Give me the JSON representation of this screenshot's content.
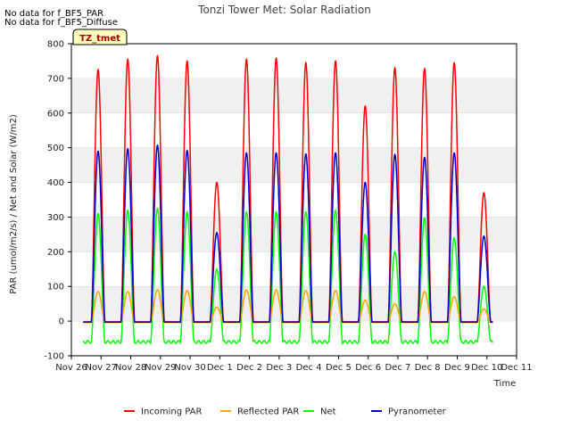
{
  "notes": [
    "No data for f_BF5_PAR",
    "No data for f_BF5_Diffuse"
  ],
  "badge": "TZ_tmet",
  "chart_data": {
    "type": "line",
    "title": "Tonzi Tower Met: Solar Radiation",
    "xlabel": "Time",
    "ylabel": "PAR (umol/m2/s) / Net and Solar (W/m2)",
    "xlim": [
      0,
      15
    ],
    "ylim": [
      -100,
      800
    ],
    "x_ticks": [
      {
        "value": 0,
        "label": "Nov 26"
      },
      {
        "value": 1,
        "label": "Nov 27"
      },
      {
        "value": 2,
        "label": "Nov 28"
      },
      {
        "value": 3,
        "label": "Nov 29"
      },
      {
        "value": 4,
        "label": "Nov 30"
      },
      {
        "value": 5,
        "label": "Dec 1"
      },
      {
        "value": 6,
        "label": "Dec 2"
      },
      {
        "value": 7,
        "label": "Dec 3"
      },
      {
        "value": 8,
        "label": "Dec 4"
      },
      {
        "value": 9,
        "label": "Dec 5"
      },
      {
        "value": 10,
        "label": "Dec 6"
      },
      {
        "value": 11,
        "label": "Dec 7"
      },
      {
        "value": 12,
        "label": "Dec 8"
      },
      {
        "value": 13,
        "label": "Dec 9"
      },
      {
        "value": 14,
        "label": "Dec 10"
      },
      {
        "value": 15,
        "label": "Dec 11"
      }
    ],
    "y_ticks": [
      -100,
      0,
      100,
      200,
      300,
      400,
      500,
      600,
      700,
      800
    ],
    "grid": true,
    "legend_position": "bottom",
    "days": [
      {
        "day": 0.9,
        "par": 725,
        "refl": 85,
        "net": 310,
        "pyr": 490
      },
      {
        "day": 1.9,
        "par": 755,
        "refl": 85,
        "net": 320,
        "pyr": 497
      },
      {
        "day": 2.9,
        "par": 765,
        "refl": 90,
        "net": 325,
        "pyr": 507
      },
      {
        "day": 3.9,
        "par": 750,
        "refl": 88,
        "net": 315,
        "pyr": 492
      },
      {
        "day": 4.9,
        "par": 400,
        "refl": 40,
        "net": 150,
        "pyr": 255
      },
      {
        "day": 5.9,
        "par": 755,
        "refl": 90,
        "net": 315,
        "pyr": 485
      },
      {
        "day": 6.9,
        "par": 758,
        "refl": 90,
        "net": 315,
        "pyr": 485
      },
      {
        "day": 7.9,
        "par": 745,
        "refl": 88,
        "net": 315,
        "pyr": 482
      },
      {
        "day": 8.9,
        "par": 750,
        "refl": 88,
        "net": 320,
        "pyr": 485
      },
      {
        "day": 9.9,
        "par": 620,
        "refl": 60,
        "net": 250,
        "pyr": 400
      },
      {
        "day": 10.9,
        "par": 730,
        "refl": 50,
        "net": 200,
        "pyr": 480
      },
      {
        "day": 11.9,
        "par": 728,
        "refl": 85,
        "net": 298,
        "pyr": 472
      },
      {
        "day": 12.9,
        "par": 745,
        "refl": 70,
        "net": 240,
        "pyr": 485
      },
      {
        "day": 13.9,
        "par": 370,
        "refl": 35,
        "net": 100,
        "pyr": 245
      }
    ],
    "series": [
      {
        "name": "Incoming PAR",
        "key": "par",
        "color": "#ff0000",
        "night": -2
      },
      {
        "name": "Reflected PAR",
        "key": "refl",
        "color": "#ffa500",
        "night": -4
      },
      {
        "name": "Net",
        "key": "net",
        "color": "#00ff00",
        "night": -60
      },
      {
        "name": "Pyranometer",
        "key": "pyr",
        "color": "#0000cc",
        "night": -3
      }
    ]
  }
}
